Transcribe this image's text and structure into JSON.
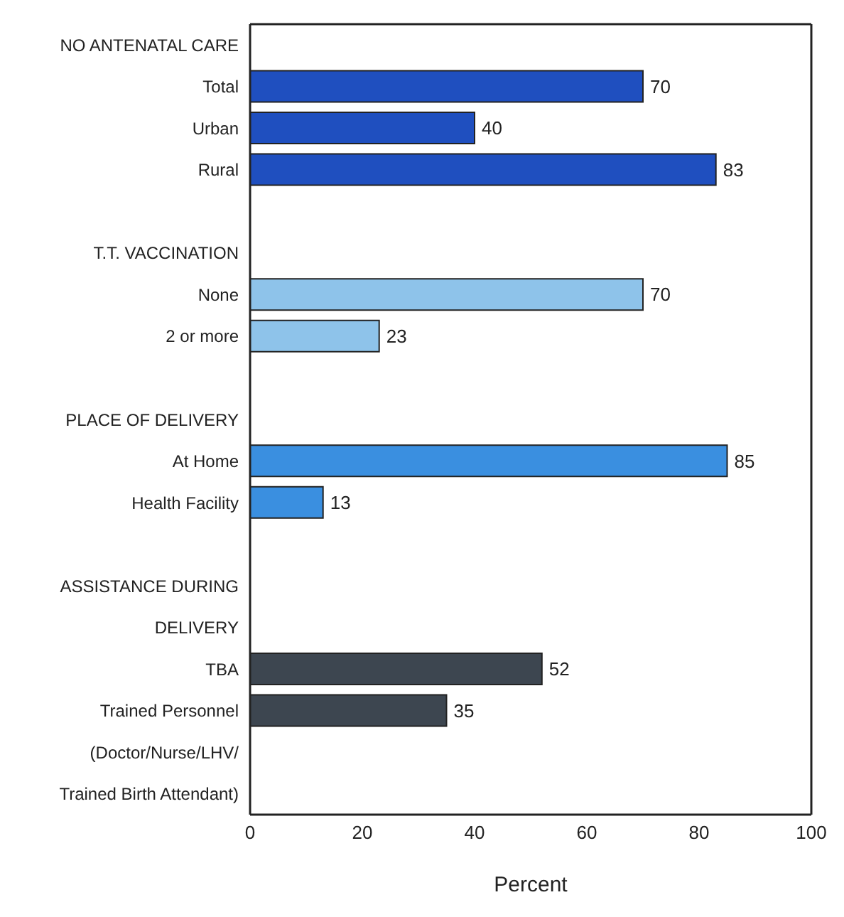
{
  "chart_data": {
    "type": "bar",
    "orientation": "horizontal",
    "xlabel": "Percent",
    "categories": [
      "NO ANTENATAL CARE",
      "Total",
      "Urban",
      "Rural",
      null,
      "T.T. VACCINATION",
      "None",
      "2 or more",
      null,
      "PLACE OF DELIVERY",
      "At Home",
      "Health Facility",
      null,
      "ASSISTANCE DURING",
      "DELIVERY",
      "TBA",
      "Trained Personnel",
      "(Doctor/Nurse/LHV/",
      "Trained Birth Attendant)"
    ],
    "values": [
      null,
      70,
      40,
      83,
      null,
      null,
      70,
      23,
      null,
      null,
      85,
      13,
      null,
      null,
      null,
      52,
      35,
      null,
      null
    ],
    "colors": [
      "#1f4fbf",
      "#1f4fbf",
      "#1f4fbf",
      "#1f4fbf",
      "#1f4fbf",
      "#8ec3ea",
      "#8ec3ea",
      "#8ec3ea",
      "#8ec3ea",
      "#3a8fe0",
      "#3a8fe0",
      "#3a8fe0",
      "#3a8fe0",
      "#3d4650",
      "#3d4650",
      "#3d4650",
      "#3d4650",
      "#3d4650",
      "#3d4650"
    ],
    "xlim": [
      0,
      100
    ],
    "xticks": [
      0,
      20,
      40,
      60,
      80,
      100
    ],
    "data_labels": true
  }
}
